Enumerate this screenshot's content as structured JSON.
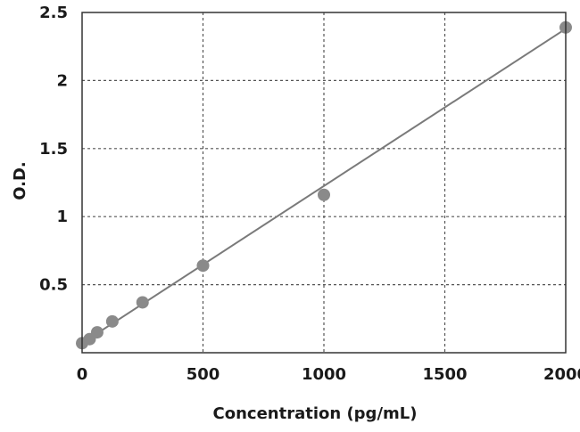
{
  "chart_data": {
    "type": "scatter",
    "title": "",
    "xlabel": "Concentration (pg/mL)",
    "ylabel": "O.D.",
    "xlim": [
      0,
      2000
    ],
    "ylim": [
      0,
      2.5
    ],
    "x_ticks": [
      "0",
      "500",
      "1000",
      "1500",
      "2000"
    ],
    "y_ticks": [
      "0.5",
      "1",
      "1.5",
      "2",
      "2.5"
    ],
    "grid": true,
    "series": [
      {
        "points": [
          {
            "x": 0,
            "y": 0.07
          },
          {
            "x": 31.25,
            "y": 0.1
          },
          {
            "x": 62.5,
            "y": 0.15
          },
          {
            "x": 125,
            "y": 0.23
          },
          {
            "x": 250,
            "y": 0.37
          },
          {
            "x": 500,
            "y": 0.64
          },
          {
            "x": 1000,
            "y": 1.16
          },
          {
            "x": 2000,
            "y": 2.39
          }
        ],
        "fit_line": {
          "x0": 0,
          "y0": 0.07,
          "x1": 2000,
          "y1": 2.38
        }
      }
    ],
    "colors": {
      "marker": "#8a8a8a",
      "line": "#7a7a7a",
      "grid": "#555555",
      "frame": "#333333",
      "text": "#1a1a1a"
    }
  }
}
